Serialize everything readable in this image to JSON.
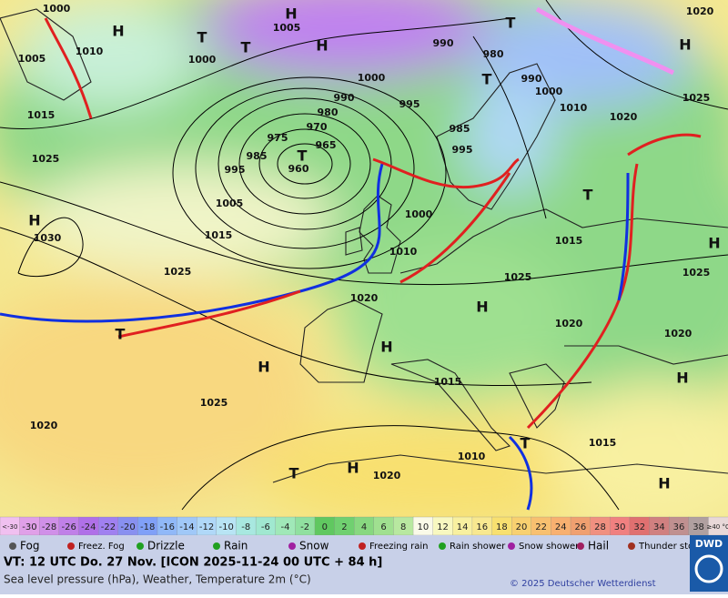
{
  "map": {
    "labels": [
      "1000",
      "H",
      "1010",
      "1005",
      "1015",
      "1025",
      "H",
      "1030",
      "1025",
      "1015",
      "1005",
      "995",
      "985",
      "975",
      "970",
      "965",
      "960",
      "T",
      "980",
      "990",
      "1000",
      "995",
      "1000",
      "1010",
      "1020",
      "H",
      "1005",
      "H",
      "T",
      "T",
      "1000",
      "990",
      "980",
      "T",
      "990",
      "1000",
      "1010",
      "1020",
      "1020",
      "H",
      "1025",
      "T",
      "985",
      "995",
      "T",
      "1015",
      "H",
      "1025",
      "1025",
      "H",
      "1020",
      "1020",
      "H",
      "H",
      "1025",
      "1015",
      "1010",
      "1020",
      "H",
      "T",
      "1015",
      "H",
      "H",
      "1020",
      "T",
      "T"
    ]
  },
  "scale": {
    "items": [
      "<-30",
      -30,
      -28,
      -26,
      -24,
      -22,
      -20,
      -18,
      -16,
      -14,
      -12,
      -10,
      -8,
      -6,
      -4,
      -2,
      0,
      2,
      4,
      6,
      8,
      10,
      12,
      14,
      16,
      18,
      20,
      22,
      24,
      26,
      28,
      30,
      32,
      34,
      36,
      38,
      "≥40 °C"
    ],
    "colors": [
      "#f0c0f0",
      "#e0a0e8",
      "#d090e8",
      "#c080e8",
      "#b070e8",
      "#a080f0",
      "#8890f0",
      "#80a0f8",
      "#90b8f8",
      "#a0c8f8",
      "#b0d8f8",
      "#b8e4f4",
      "#a8e8e0",
      "#a0e8d0",
      "#a0e8b8",
      "#90e0a0",
      "#60c860",
      "#70d070",
      "#88d880",
      "#a0e090",
      "#b8e8a0",
      "#fafae8",
      "#f8f8c0",
      "#f8f0a0",
      "#f8e890",
      "#f8e070",
      "#f8d070",
      "#f8c070",
      "#f8b070",
      "#f0a070",
      "#f09080",
      "#f08080",
      "#e07070",
      "#d08080",
      "#c09090",
      "#b0a0a0",
      "#e8d8d8"
    ]
  },
  "legend": {
    "items": [
      "Fog",
      "Freez. Fog",
      "Drizzle",
      "Rain",
      "Snow",
      "Freezing rain",
      "Rain shower",
      "Snow shower",
      "Hail",
      "Thunder storm"
    ]
  },
  "footer": {
    "valid_time": "VT: 12 UTC Do.  27 Nov. [ICON 2025-11-24  00 UTC + 84 h]",
    "description": "Sea level pressure (hPa), Weather, Temperature 2m (°C)",
    "copyright": "© 2025 Deutscher Wetterdienst",
    "logo": "DWD"
  }
}
